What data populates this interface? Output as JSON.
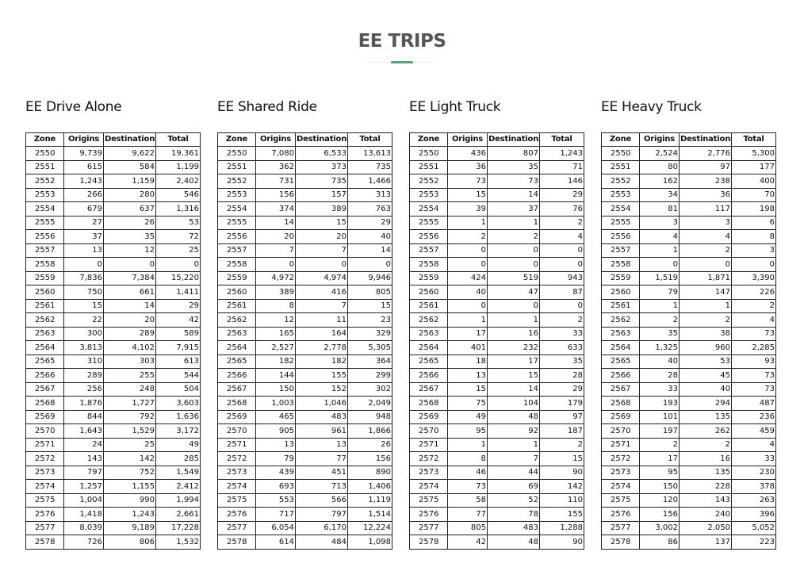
{
  "page": {
    "title": "EE TRIPS"
  },
  "columns": [
    "Zone",
    "Origins",
    "Destinations",
    "Total"
  ],
  "tables": [
    {
      "title": "EE Drive Alone",
      "rows": [
        [
          "2550",
          "9,739",
          "9,622",
          "19,361"
        ],
        [
          "2551",
          "615",
          "584",
          "1,199"
        ],
        [
          "2552",
          "1,243",
          "1,159",
          "2,402"
        ],
        [
          "2553",
          "266",
          "280",
          "546"
        ],
        [
          "2554",
          "679",
          "637",
          "1,316"
        ],
        [
          "2555",
          "27",
          "26",
          "53"
        ],
        [
          "2556",
          "37",
          "35",
          "72"
        ],
        [
          "2557",
          "13",
          "12",
          "25"
        ],
        [
          "2558",
          "0",
          "0",
          "0"
        ],
        [
          "2559",
          "7,836",
          "7,384",
          "15,220"
        ],
        [
          "2560",
          "750",
          "661",
          "1,411"
        ],
        [
          "2561",
          "15",
          "14",
          "29"
        ],
        [
          "2562",
          "22",
          "20",
          "42"
        ],
        [
          "2563",
          "300",
          "289",
          "589"
        ],
        [
          "2564",
          "3,813",
          "4,102",
          "7,915"
        ],
        [
          "2565",
          "310",
          "303",
          "613"
        ],
        [
          "2566",
          "289",
          "255",
          "544"
        ],
        [
          "2567",
          "256",
          "248",
          "504"
        ],
        [
          "2568",
          "1,876",
          "1,727",
          "3,603"
        ],
        [
          "2569",
          "844",
          "792",
          "1,636"
        ],
        [
          "2570",
          "1,643",
          "1,529",
          "3,172"
        ],
        [
          "2571",
          "24",
          "25",
          "49"
        ],
        [
          "2572",
          "143",
          "142",
          "285"
        ],
        [
          "2573",
          "797",
          "752",
          "1,549"
        ],
        [
          "2574",
          "1,257",
          "1,155",
          "2,412"
        ],
        [
          "2575",
          "1,004",
          "990",
          "1,994"
        ],
        [
          "2576",
          "1,418",
          "1,243",
          "2,661"
        ],
        [
          "2577",
          "8,039",
          "9,189",
          "17,228"
        ],
        [
          "2578",
          "726",
          "806",
          "1,532"
        ]
      ]
    },
    {
      "title": "EE Shared Ride",
      "rows": [
        [
          "2550",
          "7,080",
          "6,533",
          "13,613"
        ],
        [
          "2551",
          "362",
          "373",
          "735"
        ],
        [
          "2552",
          "731",
          "735",
          "1,466"
        ],
        [
          "2553",
          "156",
          "157",
          "313"
        ],
        [
          "2554",
          "374",
          "389",
          "763"
        ],
        [
          "2555",
          "14",
          "15",
          "29"
        ],
        [
          "2556",
          "20",
          "20",
          "40"
        ],
        [
          "2557",
          "7",
          "7",
          "14"
        ],
        [
          "2558",
          "0",
          "0",
          "0"
        ],
        [
          "2559",
          "4,972",
          "4,974",
          "9,946"
        ],
        [
          "2560",
          "389",
          "416",
          "805"
        ],
        [
          "2561",
          "8",
          "7",
          "15"
        ],
        [
          "2562",
          "12",
          "11",
          "23"
        ],
        [
          "2563",
          "165",
          "164",
          "329"
        ],
        [
          "2564",
          "2,527",
          "2,778",
          "5,305"
        ],
        [
          "2565",
          "182",
          "182",
          "364"
        ],
        [
          "2566",
          "144",
          "155",
          "299"
        ],
        [
          "2567",
          "150",
          "152",
          "302"
        ],
        [
          "2568",
          "1,003",
          "1,046",
          "2,049"
        ],
        [
          "2569",
          "465",
          "483",
          "948"
        ],
        [
          "2570",
          "905",
          "961",
          "1,866"
        ],
        [
          "2571",
          "13",
          "13",
          "26"
        ],
        [
          "2572",
          "79",
          "77",
          "156"
        ],
        [
          "2573",
          "439",
          "451",
          "890"
        ],
        [
          "2574",
          "693",
          "713",
          "1,406"
        ],
        [
          "2575",
          "553",
          "566",
          "1,119"
        ],
        [
          "2576",
          "717",
          "797",
          "1,514"
        ],
        [
          "2577",
          "6,054",
          "6,170",
          "12,224"
        ],
        [
          "2578",
          "614",
          "484",
          "1,098"
        ]
      ]
    },
    {
      "title": "EE Light Truck",
      "rows": [
        [
          "2550",
          "436",
          "807",
          "1,243"
        ],
        [
          "2551",
          "36",
          "35",
          "71"
        ],
        [
          "2552",
          "73",
          "73",
          "146"
        ],
        [
          "2553",
          "15",
          "14",
          "29"
        ],
        [
          "2554",
          "39",
          "37",
          "76"
        ],
        [
          "2555",
          "1",
          "1",
          "2"
        ],
        [
          "2556",
          "2",
          "2",
          "4"
        ],
        [
          "2557",
          "0",
          "0",
          "0"
        ],
        [
          "2558",
          "0",
          "0",
          "0"
        ],
        [
          "2559",
          "424",
          "519",
          "943"
        ],
        [
          "2560",
          "40",
          "47",
          "87"
        ],
        [
          "2561",
          "0",
          "0",
          "0"
        ],
        [
          "2562",
          "1",
          "1",
          "2"
        ],
        [
          "2563",
          "17",
          "16",
          "33"
        ],
        [
          "2564",
          "401",
          "232",
          "633"
        ],
        [
          "2565",
          "18",
          "17",
          "35"
        ],
        [
          "2566",
          "13",
          "15",
          "28"
        ],
        [
          "2567",
          "15",
          "14",
          "29"
        ],
        [
          "2568",
          "75",
          "104",
          "179"
        ],
        [
          "2569",
          "49",
          "48",
          "97"
        ],
        [
          "2570",
          "95",
          "92",
          "187"
        ],
        [
          "2571",
          "1",
          "1",
          "2"
        ],
        [
          "2572",
          "8",
          "7",
          "15"
        ],
        [
          "2573",
          "46",
          "44",
          "90"
        ],
        [
          "2574",
          "73",
          "69",
          "142"
        ],
        [
          "2575",
          "58",
          "52",
          "110"
        ],
        [
          "2576",
          "77",
          "78",
          "155"
        ],
        [
          "2577",
          "805",
          "483",
          "1,288"
        ],
        [
          "2578",
          "42",
          "48",
          "90"
        ]
      ]
    },
    {
      "title": "EE Heavy Truck",
      "rows": [
        [
          "2550",
          "2,524",
          "2,776",
          "5,300"
        ],
        [
          "2551",
          "80",
          "97",
          "177"
        ],
        [
          "2552",
          "162",
          "238",
          "400"
        ],
        [
          "2553",
          "34",
          "36",
          "70"
        ],
        [
          "2554",
          "81",
          "117",
          "198"
        ],
        [
          "2555",
          "3",
          "3",
          "6"
        ],
        [
          "2556",
          "4",
          "4",
          "8"
        ],
        [
          "2557",
          "1",
          "2",
          "3"
        ],
        [
          "2558",
          "0",
          "0",
          "0"
        ],
        [
          "2559",
          "1,519",
          "1,871",
          "3,390"
        ],
        [
          "2560",
          "79",
          "147",
          "226"
        ],
        [
          "2561",
          "1",
          "1",
          "2"
        ],
        [
          "2562",
          "2",
          "2",
          "4"
        ],
        [
          "2563",
          "35",
          "38",
          "73"
        ],
        [
          "2564",
          "1,325",
          "960",
          "2,285"
        ],
        [
          "2565",
          "40",
          "53",
          "93"
        ],
        [
          "2566",
          "28",
          "45",
          "73"
        ],
        [
          "2567",
          "33",
          "40",
          "73"
        ],
        [
          "2568",
          "193",
          "294",
          "487"
        ],
        [
          "2569",
          "101",
          "135",
          "236"
        ],
        [
          "2570",
          "197",
          "262",
          "459"
        ],
        [
          "2571",
          "2",
          "2",
          "4"
        ],
        [
          "2572",
          "17",
          "16",
          "33"
        ],
        [
          "2573",
          "95",
          "135",
          "230"
        ],
        [
          "2574",
          "150",
          "228",
          "378"
        ],
        [
          "2575",
          "120",
          "143",
          "263"
        ],
        [
          "2576",
          "156",
          "240",
          "396"
        ],
        [
          "2577",
          "3,002",
          "2,050",
          "5,052"
        ],
        [
          "2578",
          "86",
          "137",
          "223"
        ]
      ]
    }
  ],
  "colors": {
    "heading": "#555555",
    "accent": "#3fb56b",
    "text": "#111111",
    "border": "#222222"
  }
}
